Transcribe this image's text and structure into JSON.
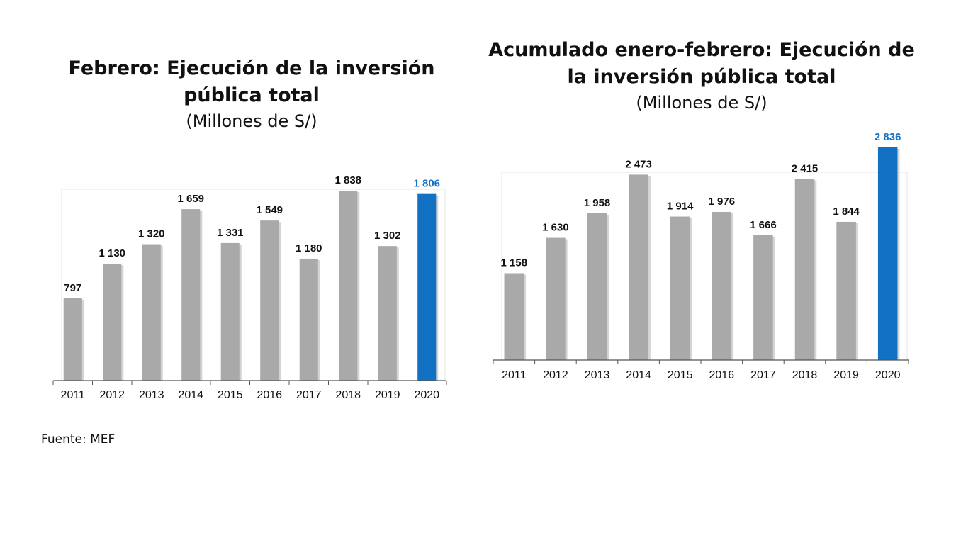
{
  "source": "Fuente: MEF",
  "colors": {
    "bar": "#a9a9a9",
    "highlight": "#1271c3",
    "label": "#111111",
    "highlight_label": "#1271c3"
  },
  "chart_data": [
    {
      "type": "bar",
      "title": "Febrero: Ejecución de la inversión pública total",
      "subtitle": "(Millones de S/)",
      "categories": [
        "2011",
        "2012",
        "2013",
        "2014",
        "2015",
        "2016",
        "2017",
        "2018",
        "2019",
        "2020"
      ],
      "values": [
        797,
        1130,
        1320,
        1659,
        1331,
        1549,
        1180,
        1838,
        1302,
        1806
      ],
      "value_labels": [
        "797",
        "1 130",
        "1 320",
        "1 659",
        "1 331",
        "1 549",
        "1 180",
        "1 838",
        "1 302",
        "1 806"
      ],
      "highlight_category": "2020",
      "ylim": [
        0,
        1838
      ],
      "grid": false,
      "legend": "none"
    },
    {
      "type": "bar",
      "title": "Acumulado enero-febrero: Ejecución de la inversión pública total",
      "subtitle": "(Millones de S/)",
      "categories": [
        "2011",
        "2012",
        "2013",
        "2014",
        "2015",
        "2016",
        "2017",
        "2018",
        "2019",
        "2020"
      ],
      "values": [
        1158,
        1630,
        1958,
        2473,
        1914,
        1976,
        1666,
        2415,
        1844,
        2836
      ],
      "value_labels": [
        "1 158",
        "1 630",
        "1 958",
        "2 473",
        "1 914",
        "1 976",
        "1 666",
        "2 415",
        "1 844",
        "2 836"
      ],
      "highlight_category": "2020",
      "ylim": [
        0,
        2836
      ],
      "grid": false,
      "legend": "none"
    }
  ]
}
